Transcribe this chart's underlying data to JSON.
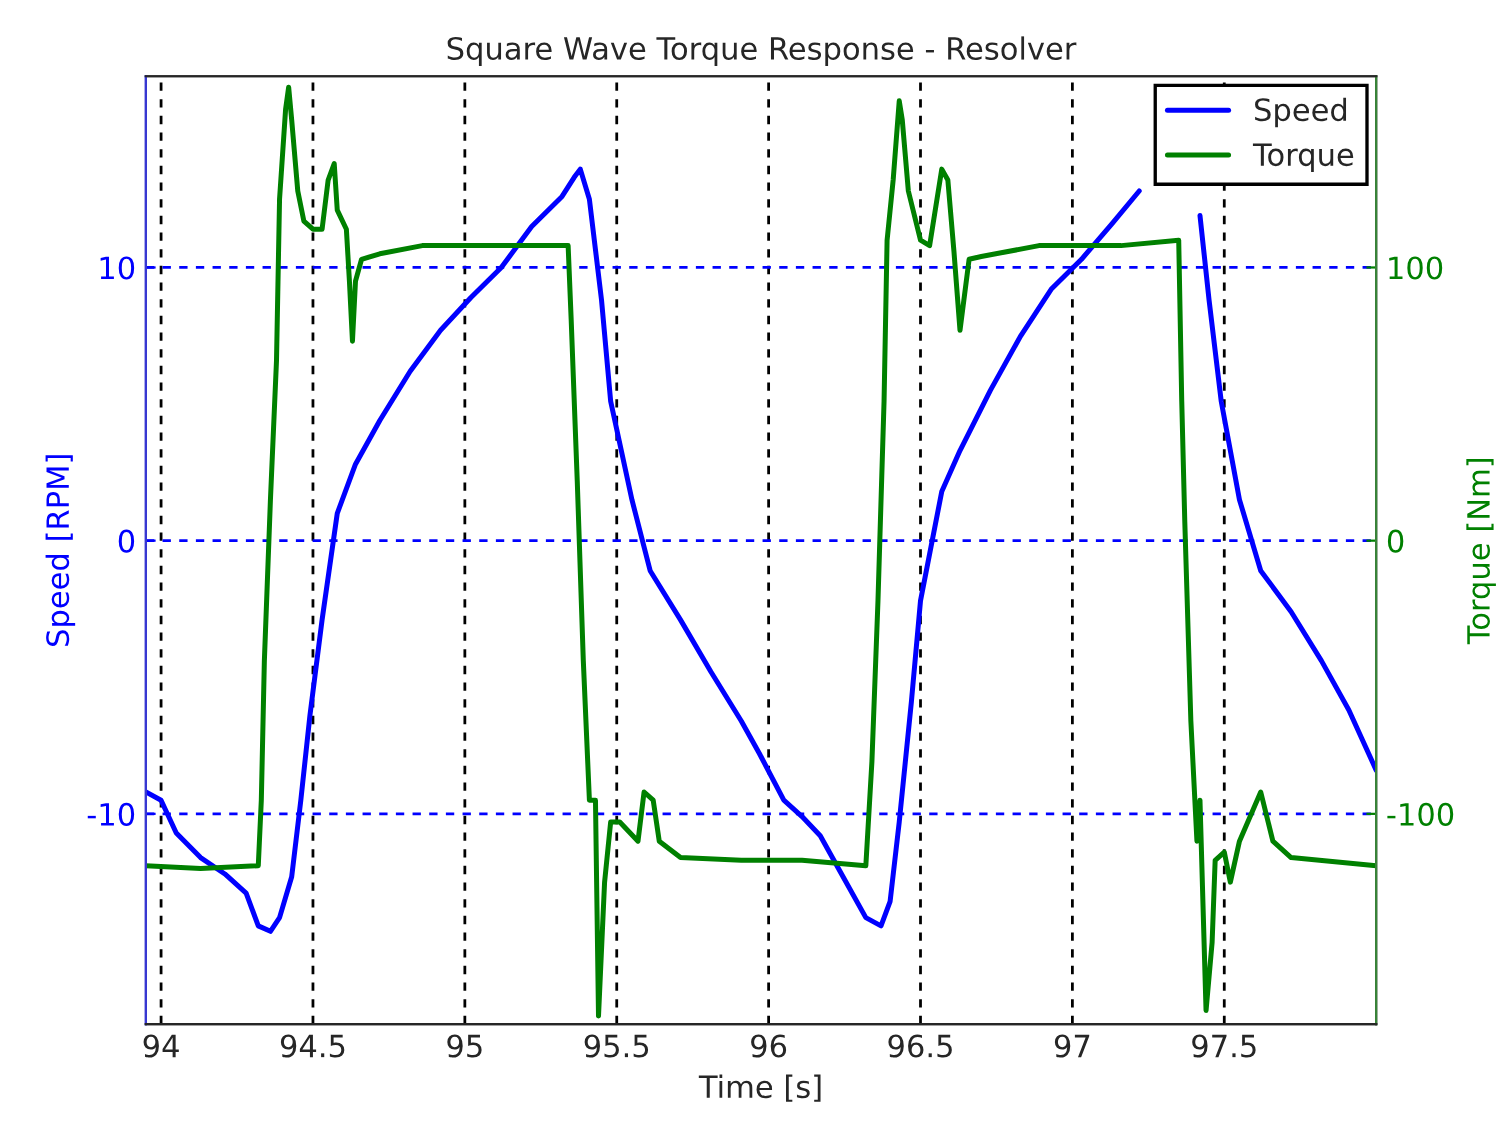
{
  "chart_data": {
    "type": "line",
    "title": "Square Wave Torque Response - Resolver",
    "xlabel": "Time [s]",
    "ylabel": "Speed [RPM]",
    "y2label": "Torque [Nm]",
    "xlim": [
      93.95,
      98.0
    ],
    "xticks": [
      94,
      94.5,
      95,
      95.5,
      96,
      96.5,
      97,
      97.5
    ],
    "ylim": [
      -17.7,
      17.0
    ],
    "yticks": [
      -10,
      0,
      10
    ],
    "y2lim": [
      -177,
      170
    ],
    "y2ticks": [
      -100,
      0,
      100
    ],
    "grid": true,
    "legend": "top right",
    "line_style": "solid",
    "series": [
      {
        "name": "Speed",
        "color": "#0000ff",
        "x": [
          93.95,
          94,
          94.05,
          94.13,
          94.21,
          94.28,
          94.32,
          94.36,
          94.39,
          94.43,
          94.46,
          94.49,
          94.53,
          94.58,
          94.64,
          94.72,
          94.82,
          94.92,
          95.02,
          95.12,
          95.22,
          95.32,
          95.36,
          95.38,
          95.41,
          95.45,
          95.48,
          95.55,
          95.61,
          95.71,
          95.81,
          95.91,
          95.97,
          96.05,
          96.11,
          96.17,
          96.24,
          96.32,
          96.37,
          96.4,
          96.43,
          96.47,
          96.5,
          96.57,
          96.63,
          96.73,
          96.83,
          96.93,
          97.03,
          97.13,
          97.22,
          97.3,
          97.42,
          97.45,
          97.49,
          97.55,
          97.62,
          97.72,
          97.82,
          97.91,
          98.0
        ],
        "values": [
          -9.2,
          -9.5,
          -10.7,
          -11.6,
          -12.2,
          -12.9,
          -14.1,
          -14.3,
          -13.8,
          -12.3,
          -9.5,
          -6.4,
          -2.9,
          1.0,
          2.8,
          4.4,
          6.2,
          7.7,
          8.9,
          10.0,
          11.5,
          12.6,
          13.3,
          13.6,
          12.5,
          8.8,
          5.1,
          1.5,
          -1.1,
          -2.9,
          -4.8,
          -6.6,
          -7.8,
          -9.5,
          -10.1,
          -10.8,
          -12.2,
          -13.8,
          -14.1,
          -13.2,
          -10.3,
          -5.9,
          -2.2,
          1.8,
          3.3,
          5.5,
          7.5,
          9.2,
          10.3,
          11.6,
          12.8,
          null,
          11.9,
          8.8,
          5.1,
          1.5,
          -1.1,
          -2.6,
          -4.4,
          -6.2,
          -8.4
        ]
      },
      {
        "name": "Torque",
        "color": "#008000",
        "axis": "y2",
        "x": [
          93.95,
          94.13,
          94.32,
          94.33,
          94.34,
          94.36,
          94.38,
          94.39,
          94.41,
          94.42,
          94.43,
          94.45,
          94.47,
          94.5,
          94.53,
          94.55,
          94.57,
          94.58,
          94.61,
          94.62,
          94.63,
          94.64,
          94.66,
          94.72,
          94.86,
          95.05,
          95.25,
          95.34,
          95.35,
          95.37,
          95.39,
          95.41,
          95.43,
          95.44,
          95.46,
          95.48,
          95.51,
          95.57,
          95.59,
          95.62,
          95.64,
          95.71,
          95.91,
          96.11,
          96.32,
          96.34,
          96.36,
          96.38,
          96.39,
          96.41,
          96.43,
          96.44,
          96.46,
          96.5,
          96.53,
          96.57,
          96.59,
          96.61,
          96.63,
          96.66,
          96.7,
          96.89,
          97.16,
          97.35,
          97.36,
          97.37,
          97.39,
          97.41,
          97.42,
          97.44,
          97.46,
          97.47,
          97.5,
          97.52,
          97.55,
          97.62,
          97.66,
          97.72,
          98.0
        ],
        "values": [
          -119,
          -120,
          -119,
          -95,
          -44,
          15,
          66,
          125,
          158,
          166,
          154,
          128,
          117,
          114,
          114,
          132,
          138,
          121,
          114,
          95,
          73,
          95,
          103,
          105,
          108,
          108,
          108,
          108,
          81,
          22,
          -44,
          -95,
          -95,
          -174,
          -125,
          -103,
          -103,
          -110,
          -92,
          -95,
          -110,
          -116,
          -117,
          -117,
          -119,
          -81,
          -22,
          51,
          110,
          132,
          161,
          154,
          128,
          110,
          108,
          136,
          132,
          106,
          77,
          103,
          104,
          108,
          108,
          110,
          51,
          7,
          -66,
          -110,
          -95,
          -172,
          -147,
          -117,
          -114,
          -125,
          -110,
          -92,
          -110,
          -116,
          -119
        ]
      }
    ]
  }
}
